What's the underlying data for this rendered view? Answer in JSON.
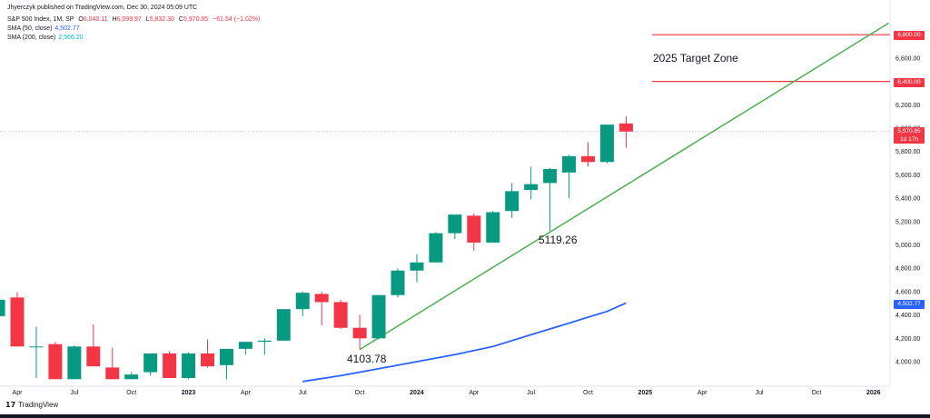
{
  "meta": {
    "publisher": "Jhyerczyk published on TradingView.com, Dec 30, 2024 05:09 UTC"
  },
  "legend": {
    "symbol": "S&P 500 Index, 1M, SP",
    "o_label": "O",
    "o": "6,040.11",
    "h_label": "H",
    "h": "6,099.97",
    "l_label": "L",
    "l": "5,832.30",
    "c_label": "C",
    "c": "5,970.85",
    "change": "−61.54 (−1.02%)",
    "sma50_label": "SMA (50, close)",
    "sma50": "4,502.77",
    "sma200_label": "SMA (200, close)",
    "sma200": "2,566.20"
  },
  "annotations": {
    "target_zone": "2025 Target Zone",
    "low_2023": "4103.78",
    "low_2024": "5119.26"
  },
  "price_labels": {
    "r6800": "6,800.00",
    "r6400": "6,400.00",
    "last": "5,970.85",
    "countdown": "1d 17h",
    "sma": "4,502.77"
  },
  "brand": {
    "name": "TradingView"
  },
  "colors": {
    "up": "#089981",
    "down": "#f23645",
    "sma50": "#2962ff",
    "trendline": "#4caf50",
    "resistance": "#f23645"
  },
  "chart_data": {
    "type": "candlestick",
    "timeframe": "1M",
    "y_ticks": [
      4000,
      4200,
      4400,
      4600,
      4800,
      5000,
      5200,
      5400,
      5600,
      5800,
      6000,
      6200,
      6400,
      6600,
      6800
    ],
    "y_tick_labels": [
      "4,000.00",
      "4,200.00",
      "4,400.00",
      "4,600.00",
      "4,800.00",
      "5,000.00",
      "5,200.00",
      "5,400.00",
      "5,600.00",
      "5,800.00",
      "6,000.00",
      "6,200.00",
      "6,400.00",
      "6,600.00",
      "6,800.00"
    ],
    "ylim": [
      3850,
      6980
    ],
    "x_ticks": [
      {
        "label": "Apr",
        "i": 0
      },
      {
        "label": "Jul",
        "i": 3
      },
      {
        "label": "Oct",
        "i": 6
      },
      {
        "label": "2023",
        "i": 9,
        "bold": true
      },
      {
        "label": "Apr",
        "i": 12
      },
      {
        "label": "Jul",
        "i": 15
      },
      {
        "label": "Oct",
        "i": 18
      },
      {
        "label": "2024",
        "i": 21,
        "bold": true
      },
      {
        "label": "Apr",
        "i": 24
      },
      {
        "label": "Jul",
        "i": 27
      },
      {
        "label": "Oct",
        "i": 30
      },
      {
        "label": "2025",
        "i": 33,
        "bold": true
      },
      {
        "label": "Apr",
        "i": 36
      },
      {
        "label": "Jul",
        "i": 39
      },
      {
        "label": "Oct",
        "i": 42
      },
      {
        "label": "2026",
        "i": 45,
        "bold": true
      }
    ],
    "candles": [
      {
        "i": -1,
        "o": 4390,
        "h": 4510,
        "l": 4370,
        "c": 4530
      },
      {
        "i": 0,
        "o": 4550,
        "h": 4595,
        "l": 4130,
        "c": 4130
      },
      {
        "i": 1,
        "o": 4130,
        "h": 4300,
        "l": 3860,
        "c": 4130
      },
      {
        "i": 2,
        "o": 4150,
        "h": 4170,
        "l": 3850,
        "c": 3850
      },
      {
        "i": 3,
        "o": 3850,
        "h": 4140,
        "l": 3850,
        "c": 4130
      },
      {
        "i": 4,
        "o": 4130,
        "h": 4320,
        "l": 3960,
        "c": 3960
      },
      {
        "i": 5,
        "o": 3950,
        "h": 4120,
        "l": 3850,
        "c": 3850
      },
      {
        "i": 6,
        "o": 3850,
        "h": 3910,
        "l": 3850,
        "c": 3890
      },
      {
        "i": 7,
        "o": 3910,
        "h": 4070,
        "l": 3880,
        "c": 4070
      },
      {
        "i": 8,
        "o": 4070,
        "h": 4090,
        "l": 3860,
        "c": 3860
      },
      {
        "i": 9,
        "o": 3860,
        "h": 4080,
        "l": 3850,
        "c": 4070
      },
      {
        "i": 10,
        "o": 4070,
        "h": 4190,
        "l": 3950,
        "c": 3960
      },
      {
        "i": 11,
        "o": 3970,
        "h": 4100,
        "l": 3850,
        "c": 4110
      },
      {
        "i": 12,
        "o": 4110,
        "h": 4170,
        "l": 4060,
        "c": 4170
      },
      {
        "i": 13,
        "o": 4170,
        "h": 4200,
        "l": 4060,
        "c": 4180
      },
      {
        "i": 14,
        "o": 4180,
        "h": 4450,
        "l": 4180,
        "c": 4450
      },
      {
        "i": 15,
        "o": 4450,
        "h": 4600,
        "l": 4390,
        "c": 4590
      },
      {
        "i": 16,
        "o": 4580,
        "h": 4600,
        "l": 4310,
        "c": 4510
      },
      {
        "i": 17,
        "o": 4510,
        "h": 4530,
        "l": 4280,
        "c": 4290
      },
      {
        "i": 18,
        "o": 4290,
        "h": 4400,
        "l": 4103.78,
        "c": 4200
      },
      {
        "i": 19,
        "o": 4200,
        "h": 4570,
        "l": 4190,
        "c": 4570
      },
      {
        "i": 20,
        "o": 4570,
        "h": 4800,
        "l": 4550,
        "c": 4780
      },
      {
        "i": 21,
        "o": 4780,
        "h": 4920,
        "l": 4680,
        "c": 4850
      },
      {
        "i": 22,
        "o": 4850,
        "h": 5110,
        "l": 4850,
        "c": 5100
      },
      {
        "i": 23,
        "o": 5100,
        "h": 5260,
        "l": 5050,
        "c": 5260
      },
      {
        "i": 24,
        "o": 5250,
        "h": 5270,
        "l": 4950,
        "c": 5020
      },
      {
        "i": 25,
        "o": 5020,
        "h": 5290,
        "l": 5020,
        "c": 5280
      },
      {
        "i": 26,
        "o": 5290,
        "h": 5530,
        "l": 5230,
        "c": 5460
      },
      {
        "i": 27,
        "o": 5470,
        "h": 5670,
        "l": 5390,
        "c": 5520
      },
      {
        "i": 28,
        "o": 5530,
        "h": 5660,
        "l": 5119.26,
        "c": 5650
      },
      {
        "i": 29,
        "o": 5620,
        "h": 5770,
        "l": 5400,
        "c": 5760
      },
      {
        "i": 30,
        "o": 5760,
        "h": 5880,
        "l": 5670,
        "c": 5710
      },
      {
        "i": 31,
        "o": 5710,
        "h": 6020,
        "l": 5700,
        "c": 6030
      },
      {
        "i": 32,
        "o": 6040.11,
        "h": 6099.97,
        "l": 5832.3,
        "c": 5970.85
      }
    ],
    "sma50": [
      {
        "i": 15,
        "v": 3830
      },
      {
        "i": 17,
        "v": 3880
      },
      {
        "i": 19,
        "v": 3940
      },
      {
        "i": 21,
        "v": 4000
      },
      {
        "i": 23,
        "v": 4060
      },
      {
        "i": 25,
        "v": 4130
      },
      {
        "i": 27,
        "v": 4230
      },
      {
        "i": 29,
        "v": 4330
      },
      {
        "i": 31,
        "v": 4430
      },
      {
        "i": 32,
        "v": 4502.77
      }
    ],
    "trendline": [
      {
        "i": 18,
        "v": 4103.78
      },
      {
        "i": 45.8,
        "v": 6900
      }
    ],
    "resistance": [
      6800,
      6400
    ],
    "last_price": 5970.85,
    "title": ""
  }
}
